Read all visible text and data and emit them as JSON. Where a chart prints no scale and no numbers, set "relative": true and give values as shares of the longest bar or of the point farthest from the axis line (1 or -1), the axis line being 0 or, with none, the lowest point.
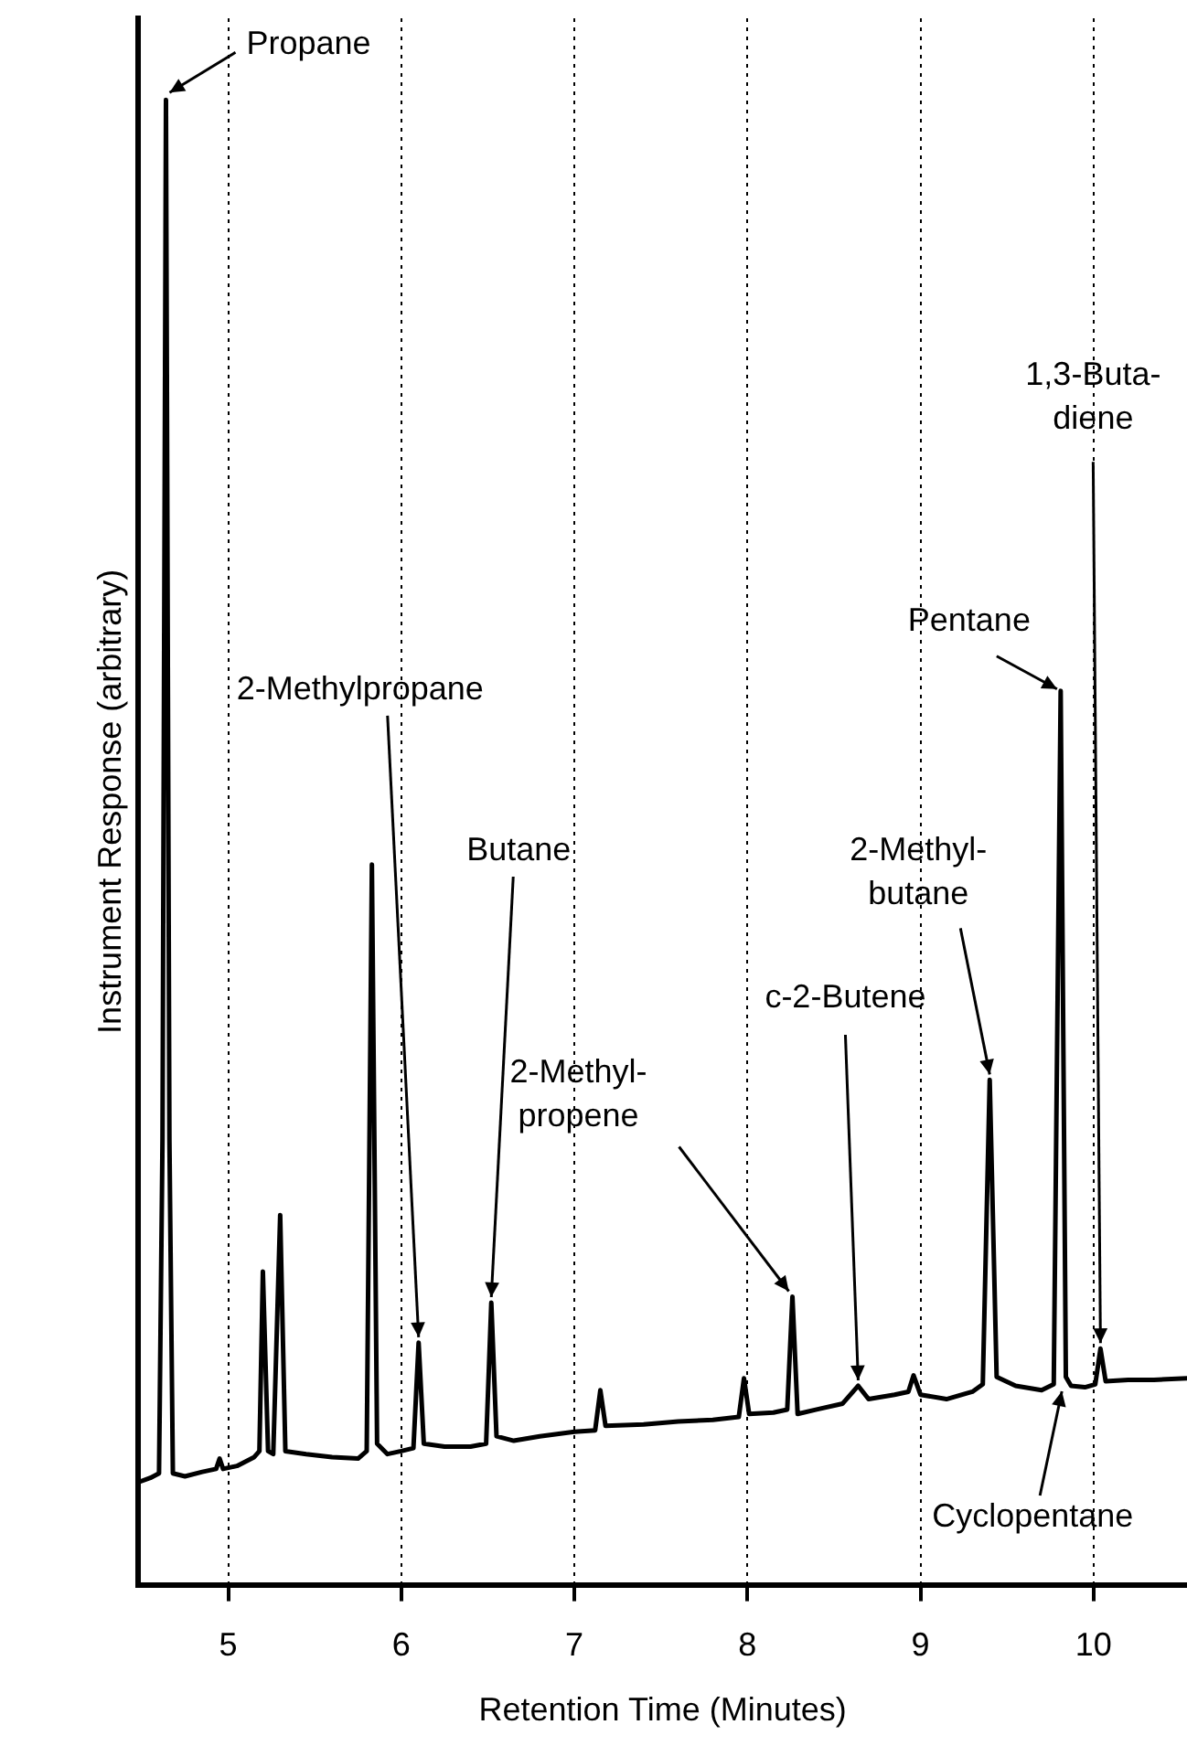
{
  "chart_data": {
    "type": "line",
    "relative": true,
    "xlabel": "Retention Time (Minutes)",
    "ylabel": "Instrument Response (arbitrary)",
    "xlim": [
      4.48,
      10.54
    ],
    "xticks": [
      5,
      6,
      7,
      8,
      9,
      10
    ],
    "grid": "x",
    "marker": "none",
    "line_style": "solid",
    "series": [
      {
        "color": "#000000",
        "x": [
          4.48,
          4.55,
          4.6,
          4.62,
          4.64,
          4.66,
          4.68,
          4.75,
          4.85,
          4.93,
          4.95,
          4.97,
          5.05,
          5.15,
          5.18,
          5.2,
          5.23,
          5.26,
          5.3,
          5.33,
          5.45,
          5.6,
          5.75,
          5.8,
          5.83,
          5.86,
          5.92,
          6.0,
          6.07,
          6.1,
          6.13,
          6.25,
          6.4,
          6.49,
          6.52,
          6.55,
          6.65,
          6.8,
          7.0,
          7.12,
          7.15,
          7.18,
          7.4,
          7.6,
          7.8,
          7.95,
          7.98,
          8.01,
          8.15,
          8.23,
          8.26,
          8.29,
          8.4,
          8.55,
          8.64,
          8.7,
          8.85,
          8.93,
          8.96,
          9.0,
          9.15,
          9.3,
          9.36,
          9.4,
          9.44,
          9.55,
          9.7,
          9.77,
          9.81,
          9.84,
          9.87,
          9.95,
          10.01,
          10.04,
          10.07,
          10.2,
          10.35,
          10.54
        ],
        "values": [
          0.069,
          0.072,
          0.075,
          0.3,
          1.0,
          0.3,
          0.075,
          0.073,
          0.076,
          0.078,
          0.085,
          0.078,
          0.08,
          0.086,
          0.09,
          0.211,
          0.09,
          0.088,
          0.249,
          0.09,
          0.088,
          0.086,
          0.085,
          0.09,
          0.485,
          0.095,
          0.088,
          0.09,
          0.092,
          0.163,
          0.095,
          0.093,
          0.093,
          0.095,
          0.19,
          0.1,
          0.097,
          0.1,
          0.103,
          0.104,
          0.131,
          0.107,
          0.108,
          0.11,
          0.111,
          0.113,
          0.139,
          0.115,
          0.116,
          0.118,
          0.194,
          0.115,
          0.118,
          0.122,
          0.134,
          0.125,
          0.128,
          0.13,
          0.141,
          0.128,
          0.125,
          0.13,
          0.135,
          0.34,
          0.14,
          0.134,
          0.131,
          0.135,
          0.602,
          0.14,
          0.134,
          0.133,
          0.135,
          0.159,
          0.137,
          0.138,
          0.138,
          0.139
        ]
      }
    ],
    "annotations": [
      {
        "text": "Propane",
        "x": 4.64,
        "y": 1.0
      },
      {
        "text": "2-Methylpropane",
        "x": 6.1,
        "y": 0.163
      },
      {
        "text": "Butane",
        "x": 6.52,
        "y": 0.19
      },
      {
        "text": "2-Methyl-\npropene",
        "x": 8.26,
        "y": 0.194
      },
      {
        "text": "c-2-Butene",
        "x": 8.64,
        "y": 0.134
      },
      {
        "text": "2-Methyl-\nbutane",
        "x": 9.4,
        "y": 0.34
      },
      {
        "text": "Pentane",
        "x": 9.81,
        "y": 0.602
      },
      {
        "text": "1,3-Buta-\ndiene",
        "x": 10.04,
        "y": 0.159
      },
      {
        "text": "Cyclopentane",
        "x": 9.87,
        "y": 0.134
      }
    ]
  }
}
